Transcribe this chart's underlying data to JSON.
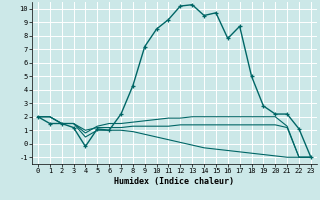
{
  "xlabel": "Humidex (Indice chaleur)",
  "xlim": [
    -0.5,
    23.5
  ],
  "ylim": [
    -1.5,
    10.5
  ],
  "yticks": [
    -1,
    0,
    1,
    2,
    3,
    4,
    5,
    6,
    7,
    8,
    9,
    10
  ],
  "xticks": [
    0,
    1,
    2,
    3,
    4,
    5,
    6,
    7,
    8,
    9,
    10,
    11,
    12,
    13,
    14,
    15,
    16,
    17,
    18,
    19,
    20,
    21,
    22,
    23
  ],
  "bg_color": "#cce8e8",
  "grid_color": "#ffffff",
  "line_color": "#006666",
  "lines": [
    {
      "x": [
        0,
        1,
        2,
        3,
        4,
        5,
        6,
        7,
        8,
        9,
        10,
        11,
        12,
        13,
        14,
        15,
        16,
        17,
        18,
        19,
        20,
        21,
        22,
        23
      ],
      "y": [
        2,
        1.5,
        1.5,
        1.2,
        -0.2,
        1.1,
        1.0,
        2.2,
        4.3,
        7.2,
        8.5,
        9.2,
        10.2,
        10.3,
        9.5,
        9.7,
        7.8,
        8.7,
        5.0,
        2.8,
        2.2,
        2.2,
        1.1,
        -1.0
      ],
      "marker": "+"
    },
    {
      "x": [
        0,
        1,
        2,
        3,
        4,
        5,
        6,
        7,
        8,
        9,
        10,
        11,
        12,
        13,
        14,
        15,
        16,
        17,
        18,
        19,
        20,
        21,
        22,
        23
      ],
      "y": [
        2.0,
        2.0,
        1.5,
        1.5,
        0.8,
        1.3,
        1.5,
        1.5,
        1.6,
        1.7,
        1.8,
        1.9,
        1.9,
        2.0,
        2.0,
        2.0,
        2.0,
        2.0,
        2.0,
        2.0,
        2.0,
        1.3,
        -1.0,
        -1.0
      ],
      "marker": null
    },
    {
      "x": [
        0,
        1,
        2,
        3,
        4,
        5,
        6,
        7,
        8,
        9,
        10,
        11,
        12,
        13,
        14,
        15,
        16,
        17,
        18,
        19,
        20,
        21,
        22,
        23
      ],
      "y": [
        2.0,
        2.0,
        1.5,
        1.5,
        1.0,
        1.2,
        1.2,
        1.2,
        1.3,
        1.3,
        1.3,
        1.3,
        1.4,
        1.4,
        1.4,
        1.4,
        1.4,
        1.4,
        1.4,
        1.4,
        1.4,
        1.2,
        -1.0,
        -1.0
      ],
      "marker": null
    },
    {
      "x": [
        0,
        1,
        2,
        3,
        4,
        5,
        6,
        7,
        8,
        9,
        10,
        11,
        12,
        13,
        14,
        15,
        16,
        17,
        18,
        19,
        20,
        21,
        22,
        23
      ],
      "y": [
        2.0,
        2.0,
        1.5,
        1.5,
        0.5,
        1.0,
        1.0,
        1.0,
        0.9,
        0.7,
        0.5,
        0.3,
        0.1,
        -0.1,
        -0.3,
        -0.4,
        -0.5,
        -0.6,
        -0.7,
        -0.8,
        -0.9,
        -1.0,
        -1.0,
        -1.0
      ],
      "marker": null
    }
  ],
  "xlabel_fontsize": 6,
  "tick_fontsize": 5,
  "linewidth_main": 1.0,
  "linewidth_other": 0.8
}
